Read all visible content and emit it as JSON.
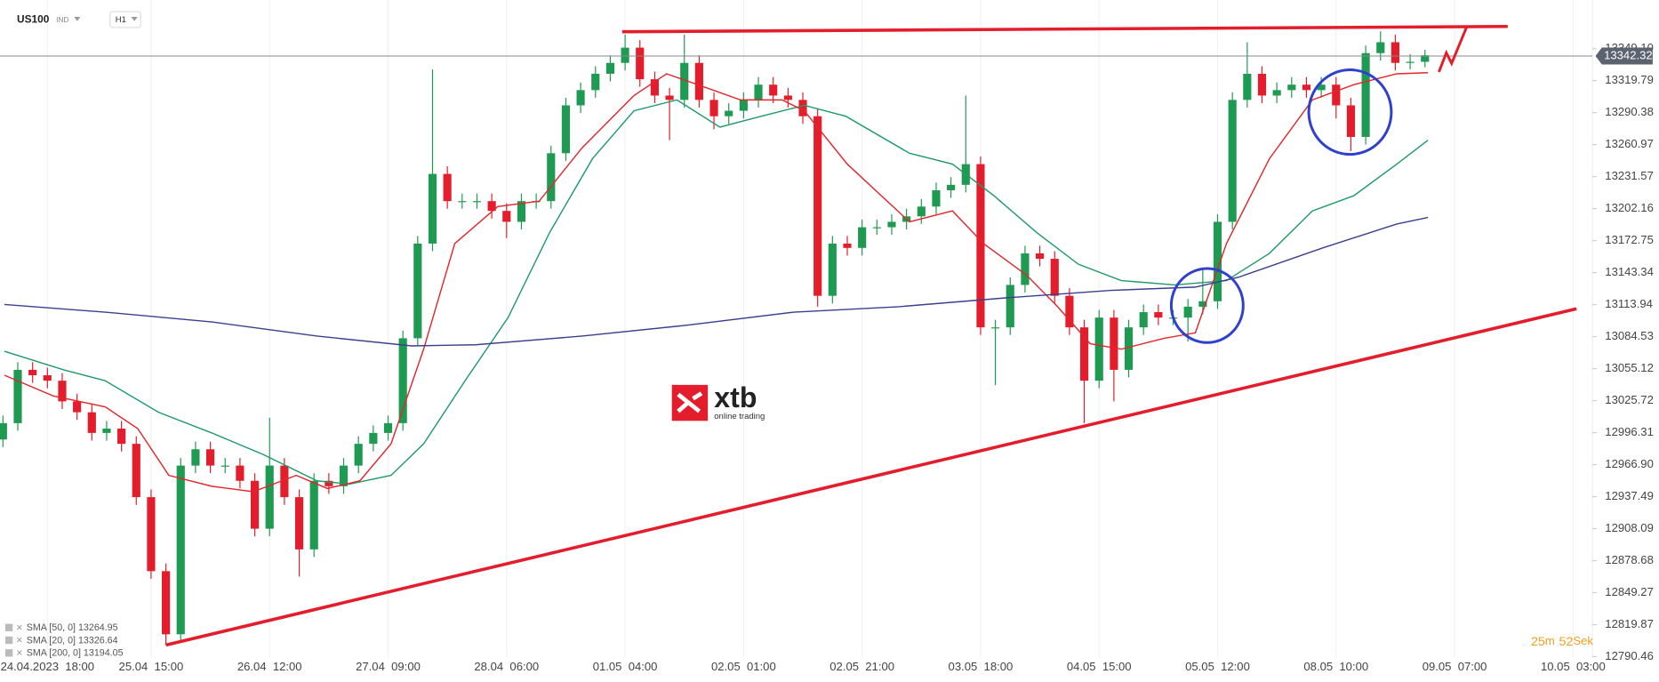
{
  "chart_data": {
    "type": "candlestick",
    "symbol": "US100",
    "instrument_type": "IND",
    "timeframe": "H1",
    "up_color": "#1f9a52",
    "down_color": "#e31d2b",
    "open": [
      12990,
      13005,
      13054,
      13049,
      13044,
      13025,
      13015,
      12996,
      13000,
      12986,
      12937,
      12869,
      12811,
      12966,
      12981,
      12966,
      12966,
      12952,
      12908,
      12966,
      12937,
      12889,
      12952,
      12947,
      12966,
      12986,
      12996,
      13005,
      13083,
      13170,
      13234,
      13209,
      13209,
      13209,
      13200,
      13190,
      13209,
      13209,
      13253,
      13297,
      13311,
      13326,
      13336,
      13350,
      13321,
      13306,
      13302,
      13336,
      13302,
      13287,
      13292,
      13302,
      13316,
      13306,
      13302,
      13287,
      13122,
      13170,
      13166,
      13185,
      13185,
      13190,
      13195,
      13204,
      13219,
      13224,
      13243,
      13093,
      13093,
      13132,
      13161,
      13156,
      13122,
      13093,
      13044,
      13102,
      13054,
      13093,
      13107,
      13102,
      13102,
      13112,
      13117,
      13190,
      13302,
      13326,
      13306,
      13311,
      13316,
      13311,
      13316,
      13297,
      13268,
      13345,
      13355,
      13336,
      13337
    ],
    "high": [
      13012,
      13061,
      13061,
      13056,
      13051,
      13032,
      13022,
      13007,
      13007,
      12993,
      12944,
      12876,
      12973,
      12988,
      12988,
      12973,
      12973,
      12959,
      13010,
      12973,
      12944,
      12959,
      12959,
      12973,
      12993,
      13003,
      13012,
      13090,
      13177,
      13330,
      13241,
      13216,
      13216,
      13216,
      13207,
      13216,
      13216,
      13260,
      13304,
      13318,
      13333,
      13343,
      13362,
      13357,
      13328,
      13313,
      13362,
      13343,
      13309,
      13299,
      13309,
      13323,
      13323,
      13313,
      13309,
      13294,
      13177,
      13177,
      13192,
      13192,
      13197,
      13202,
      13211,
      13226,
      13231,
      13306,
      13250,
      13100,
      13139,
      13168,
      13168,
      13163,
      13129,
      13100,
      13109,
      13109,
      13100,
      13114,
      13114,
      13109,
      13119,
      13148,
      13197,
      13309,
      13355,
      13333,
      13318,
      13323,
      13323,
      13323,
      13323,
      13304,
      13352,
      13365,
      13362,
      13344,
      13348
    ],
    "low": [
      12983,
      12998,
      13042,
      13037,
      13018,
      13008,
      12989,
      12989,
      12979,
      12930,
      12862,
      12801,
      12804,
      12959,
      12959,
      12959,
      12945,
      12901,
      12901,
      12930,
      12864,
      12882,
      12940,
      12940,
      12959,
      12979,
      12989,
      12998,
      13076,
      13163,
      13202,
      13202,
      13202,
      13193,
      13175,
      13183,
      13202,
      13202,
      13246,
      13290,
      13304,
      13319,
      13329,
      13314,
      13299,
      13265,
      13295,
      13295,
      13275,
      13280,
      13285,
      13295,
      13299,
      13295,
      13280,
      13112,
      13115,
      13159,
      13159,
      13178,
      13178,
      13183,
      13188,
      13197,
      13212,
      13217,
      13086,
      13040,
      13086,
      13125,
      13149,
      13115,
      13086,
      13005,
      13037,
      13025,
      13047,
      13086,
      13095,
      13095,
      13080,
      13105,
      13110,
      13183,
      13295,
      13299,
      13299,
      13304,
      13304,
      13304,
      13285,
      13255,
      13261,
      13338,
      13329,
      13330,
      13332
    ],
    "close": [
      13005,
      13054,
      13049,
      13044,
      13025,
      13015,
      12996,
      13000,
      12986,
      12937,
      12869,
      12811,
      12966,
      12981,
      12966,
      12966,
      12952,
      12908,
      12966,
      12937,
      12889,
      12952,
      12947,
      12966,
      12986,
      12996,
      13005,
      13083,
      13170,
      13234,
      13209,
      13209,
      13209,
      13200,
      13190,
      13209,
      13209,
      13253,
      13297,
      13311,
      13326,
      13336,
      13350,
      13321,
      13306,
      13302,
      13336,
      13302,
      13287,
      13292,
      13302,
      13316,
      13306,
      13302,
      13287,
      13122,
      13170,
      13166,
      13185,
      13185,
      13190,
      13195,
      13204,
      13219,
      13224,
      13243,
      13093,
      13093,
      13132,
      13161,
      13156,
      13122,
      13093,
      13044,
      13102,
      13054,
      13093,
      13107,
      13102,
      13102,
      13112,
      13117,
      13190,
      13302,
      13326,
      13306,
      13311,
      13316,
      13311,
      13316,
      13297,
      13268,
      13345,
      13355,
      13336,
      13337,
      13343
    ],
    "series": [
      {
        "name": "SMA [50, 0] 13264.95",
        "color": "#1f9a6a",
        "x": [
          0.1,
          4.1,
          6.9,
          10.5,
          14.1,
          17.6,
          21.2,
          23.4,
          26.2,
          28.4,
          31.2,
          34.1,
          36.9,
          39.8,
          42.6,
          45.5,
          48.4,
          51.2,
          54.1,
          56.9,
          61.2,
          64.1,
          66.9,
          69.8,
          72.6,
          75.5,
          79.1,
          82.6,
          85.5,
          88.4,
          91.2,
          94.1,
          96.2
        ],
        "values": [
          13071,
          13054,
          13044,
          13015,
          12996,
          12976,
          12952,
          12949,
          12957,
          12986,
          13044,
          13102,
          13180,
          13248,
          13292,
          13302,
          13277,
          13287,
          13297,
          13287,
          13253,
          13243,
          13214,
          13180,
          13151,
          13136,
          13132,
          13136,
          13161,
          13200,
          13214,
          13243,
          13265
        ]
      },
      {
        "name": "SMA [20, 0] 13326.64",
        "color": "#e3262c",
        "x": [
          0.1,
          3.4,
          6.9,
          9.1,
          11.2,
          14.1,
          16.9,
          19.8,
          21.9,
          24.1,
          26.2,
          28.4,
          30.5,
          33.4,
          36.2,
          39.1,
          42.6,
          44.8,
          46.9,
          49.8,
          52.6,
          54.1,
          57.0,
          61.2,
          64.1,
          66.2,
          69.1,
          71.2,
          73.4,
          75.5,
          78.4,
          80.5,
          82.6,
          85.5,
          88.4,
          91.2,
          94.1,
          96.2
        ],
        "values": [
          13049,
          13030,
          13020,
          13000,
          12957,
          12947,
          12942,
          12957,
          12945,
          12952,
          12986,
          13073,
          13170,
          13204,
          13209,
          13258,
          13306,
          13326,
          13316,
          13302,
          13302,
          13292,
          13243,
          13190,
          13200,
          13170,
          13141,
          13112,
          13078,
          13073,
          13083,
          13088,
          13170,
          13248,
          13302,
          13316,
          13326,
          13327
        ]
      },
      {
        "name": "SMA [200, 0] 13194.05",
        "color": "#3a3f8e",
        "x": [
          0.1,
          6.9,
          14.1,
          21.2,
          27.6,
          31.9,
          39.1,
          46.2,
          53.4,
          60.5,
          67.6,
          74.8,
          80.5,
          83.4,
          89.1,
          94.1,
          96.2
        ],
        "values": [
          13114,
          13107,
          13098,
          13085,
          13076,
          13077,
          13085,
          13095,
          13107,
          13112,
          13120,
          13127,
          13130,
          13139,
          13166,
          13188,
          13194
        ]
      }
    ],
    "last_price": 13342.32,
    "last_price_color": "#5b6270",
    "xlim": [
      -0.2,
      107.3
    ],
    "ylim": [
      12789.5,
      13393.8
    ],
    "xticks": [
      {
        "value": 3,
        "label": "24.04.2023  18:00"
      },
      {
        "value": 10,
        "label": "25.04  15:00"
      },
      {
        "value": 18,
        "label": "26.04  12:00"
      },
      {
        "value": 26,
        "label": "27.04  09:00"
      },
      {
        "value": 34,
        "label": "28.04  06:00"
      },
      {
        "value": 42,
        "label": "01.05  04:00"
      },
      {
        "value": 50,
        "label": "02.05  01:00"
      },
      {
        "value": 58,
        "label": "02.05  21:00"
      },
      {
        "value": 66,
        "label": "03.05  18:00"
      },
      {
        "value": 74,
        "label": "04.05  15:00"
      },
      {
        "value": 82,
        "label": "05.05  12:00"
      },
      {
        "value": 90,
        "label": "08.05  10:00"
      },
      {
        "value": 98,
        "label": "09.05  07:00"
      },
      {
        "value": 106,
        "label": "10.05  03:00"
      }
    ],
    "yticks": [
      {
        "value": 13349.1,
        "label": "13349.10"
      },
      13319.79,
      13290.38,
      13260.97,
      13231.57,
      13202.16,
      13172.75,
      13143.34,
      13113.94,
      13084.53,
      13055.12,
      13025.72,
      12996.31,
      {
        "value": 12966.9,
        "label": "12966.90"
      },
      12937.49,
      12908.09,
      12878.68,
      12849.27,
      12819.87,
      12790.46
    ],
    "grid": true,
    "logo": {
      "name": "xtb",
      "tagline": "online trading"
    },
    "timer": [
      "25",
      "m",
      "52",
      "Sek"
    ]
  }
}
